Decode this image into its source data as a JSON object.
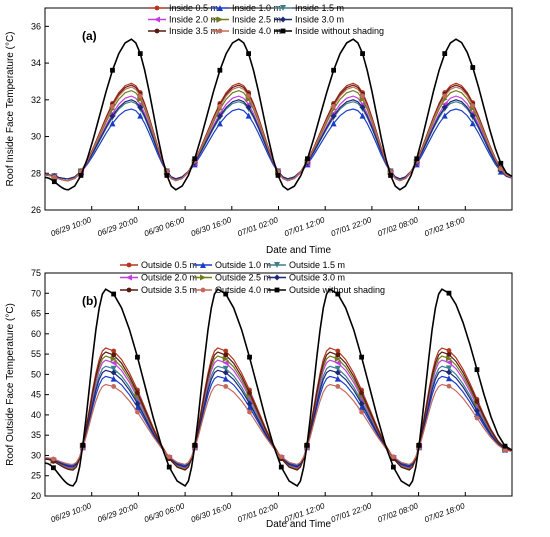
{
  "chart_data": [
    {
      "type": "line",
      "panel": "(a)",
      "xlabel": "Date and Time",
      "ylabel": "Roof Inside Face Temperature (°C)",
      "ylim": [
        26,
        37
      ],
      "yticks": [
        26,
        28,
        30,
        32,
        34,
        36
      ],
      "xlim": [
        0,
        100
      ],
      "xticks": [
        {
          "x": 10,
          "label": "06/29  10:00"
        },
        {
          "x": 20,
          "label": "06/29  20:00"
        },
        {
          "x": 30,
          "label": "06/30  06:00"
        },
        {
          "x": 40,
          "label": "06/30  16:00"
        },
        {
          "x": 50,
          "label": "07/01  02:00"
        },
        {
          "x": 60,
          "label": "07/01  12:00"
        },
        {
          "x": 70,
          "label": "07/01  22:00"
        },
        {
          "x": 80,
          "label": "07/02  08:00"
        },
        {
          "x": 90,
          "label": "07/02  18:00"
        }
      ],
      "legend_placement": "top",
      "shape": {
        "base": 28.0,
        "min_base": 27.5,
        "peak_frac": 0.17,
        "trough_frac": 0.78
      },
      "peaks_x": [
        18.5,
        41.5,
        66,
        88
      ],
      "troughs_x": [
        5,
        28,
        52,
        76
      ],
      "series": [
        {
          "name": "Inside  0.5 m",
          "color": "#b5351f",
          "marker": "circle",
          "peak": 32.9,
          "trough": 27.6
        },
        {
          "name": "Inside  1.0 m",
          "color": "#1a3dc8",
          "marker": "triangle",
          "peak": 31.5,
          "trough": 27.7
        },
        {
          "name": "Inside  1.5 m",
          "color": "#3f7f8c",
          "marker": "triangle-down",
          "peak": 31.9,
          "trough": 27.7
        },
        {
          "name": "Inside  2.0 m",
          "color": "#c43de0",
          "marker": "triangle-left",
          "peak": 32.2,
          "trough": 27.6
        },
        {
          "name": "Inside  2.5 m",
          "color": "#6f7d1a",
          "marker": "triangle-right",
          "peak": 32.5,
          "trough": 27.6
        },
        {
          "name": "Inside  3.0 m",
          "color": "#1b2a78",
          "marker": "diamond",
          "peak": 32.0,
          "trough": 27.7
        },
        {
          "name": "Inside  3.5 m",
          "color": "#5a1a12",
          "marker": "circle",
          "peak": 32.8,
          "trough": 27.6
        },
        {
          "name": "Inside  4.0 m",
          "color": "#c46a5c",
          "marker": "circle",
          "peak": 32.7,
          "trough": 27.6
        },
        {
          "name": "Inside without shading",
          "color": "#000000",
          "marker": "square",
          "peak": 35.3,
          "trough": 27.1
        }
      ]
    },
    {
      "type": "line",
      "panel": "(b)",
      "xlabel": "Date and Time",
      "ylabel": "Roof Outside Face Temperature (°C)",
      "ylim": [
        20,
        75
      ],
      "yticks": [
        20,
        25,
        30,
        35,
        40,
        45,
        50,
        55,
        60,
        65,
        70,
        75
      ],
      "xlim": [
        0,
        100
      ],
      "xticks": [
        {
          "x": 10,
          "label": "06/29  10:00"
        },
        {
          "x": 20,
          "label": "06/29  20:00"
        },
        {
          "x": 30,
          "label": "06/30  06:00"
        },
        {
          "x": 40,
          "label": "06/30  16:00"
        },
        {
          "x": 50,
          "label": "07/01  02:00"
        },
        {
          "x": 60,
          "label": "07/01  12:00"
        },
        {
          "x": 70,
          "label": "07/01  22:00"
        },
        {
          "x": 80,
          "label": "07/02  08:00"
        },
        {
          "x": 90,
          "label": "07/02  18:00"
        }
      ],
      "legend_placement": "top",
      "shape": {
        "base": 30.0,
        "min_base": 30.5,
        "peak_frac": 0.17,
        "trough_frac": 0.85
      },
      "peaks_x": [
        13,
        37,
        61,
        85
      ],
      "troughs_x": [
        6,
        30,
        54,
        78
      ],
      "series": [
        {
          "name": "Outside  0.5 m",
          "color": "#b5351f",
          "marker": "circle",
          "peak": 56.5,
          "trough": 26.5
        },
        {
          "name": "Outside  1.0 m",
          "color": "#1a3dc8",
          "marker": "triangle",
          "peak": 49.5,
          "trough": 27.5
        },
        {
          "name": "Outside  1.5 m",
          "color": "#3f7f8c",
          "marker": "triangle-down",
          "peak": 52.0,
          "trough": 27.0
        },
        {
          "name": "Outside  2.0 m",
          "color": "#c43de0",
          "marker": "triangle-left",
          "peak": 53.5,
          "trough": 26.8
        },
        {
          "name": "Outside  2.5 m",
          "color": "#6f7d1a",
          "marker": "triangle-right",
          "peak": 54.5,
          "trough": 26.6
        },
        {
          "name": "Outside  3.0 m",
          "color": "#1b2a78",
          "marker": "diamond",
          "peak": 51.0,
          "trough": 27.2
        },
        {
          "name": "Outside  3.5 m",
          "color": "#5a1a12",
          "marker": "circle",
          "peak": 55.5,
          "trough": 26.4
        },
        {
          "name": "Outside  4.0 m",
          "color": "#c46a5c",
          "marker": "circle",
          "peak": 47.5,
          "trough": 27.8
        },
        {
          "name": "Outside without shading",
          "color": "#000000",
          "marker": "square",
          "peak": 71.0,
          "trough": 22.5
        }
      ]
    }
  ]
}
